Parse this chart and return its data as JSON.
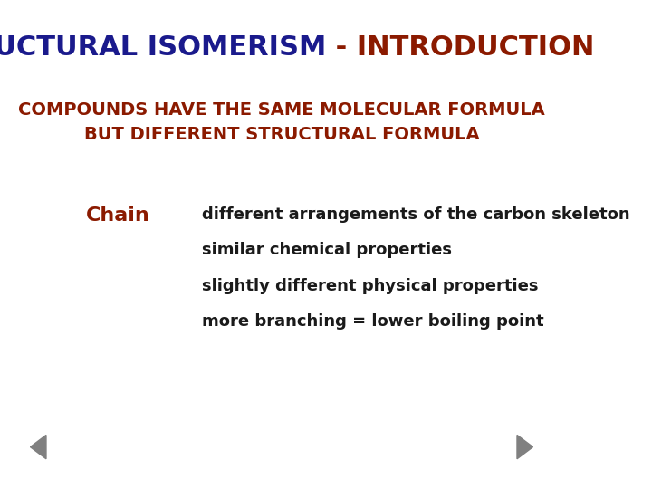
{
  "title_part1": "STRUCTURAL ISOMERISM",
  "title_part2": " - INTRODUCTION",
  "title_color1": "#1a1a8c",
  "title_color2": "#8b1a00",
  "subtitle_line1": "COMPOUNDS HAVE THE SAME MOLECULAR FORMULA",
  "subtitle_line2": "BUT DIFFERENT STRUCTURAL FORMULA",
  "subtitle_color": "#8b1a00",
  "chain_label": "Chain",
  "chain_label_color": "#8b1a00",
  "chain_lines": [
    "different arrangements of the carbon skeleton",
    "similar chemical properties",
    "slightly different physical properties",
    "more branching = lower boiling point"
  ],
  "chain_text_color": "#1a1a1a",
  "background_color": "#ffffff",
  "arrow_color": "#808080",
  "title_fontsize": 22,
  "subtitle_fontsize": 14,
  "chain_label_fontsize": 16,
  "chain_text_fontsize": 13
}
